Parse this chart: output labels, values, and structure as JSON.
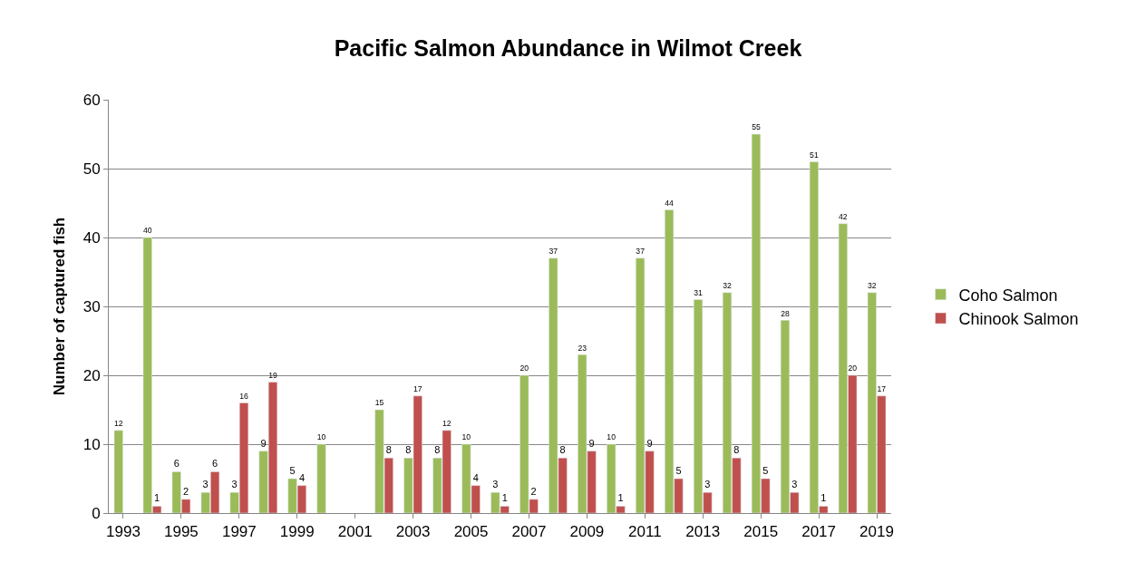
{
  "chart_data": {
    "type": "bar",
    "title": "Pacific Salmon Abundance in Wilmot Creek",
    "ylabel": "Number of captured fish",
    "categories": [
      "1993",
      null,
      "1995",
      null,
      "1997",
      null,
      "1999",
      null,
      "2001",
      null,
      "2003",
      null,
      "2005",
      null,
      "2007",
      null,
      "2009",
      null,
      "2011",
      null,
      "2013",
      null,
      "2015",
      null,
      "2017",
      null,
      "2019"
    ],
    "series": [
      {
        "name": "Coho Salmon",
        "color": "#9bbb59",
        "values": [
          12,
          40,
          6,
          3,
          3,
          9,
          5,
          10,
          null,
          15,
          8,
          8,
          10,
          3,
          20,
          37,
          23,
          10,
          37,
          44,
          31,
          32,
          55,
          28,
          51,
          42,
          32
        ]
      },
      {
        "name": "Chinook Salmon",
        "color": "#c0504d",
        "values": [
          null,
          1,
          2,
          6,
          16,
          19,
          4,
          null,
          null,
          8,
          17,
          12,
          4,
          1,
          2,
          8,
          9,
          1,
          9,
          5,
          3,
          8,
          5,
          3,
          1,
          20,
          17
        ]
      }
    ],
    "ylim": [
      0,
      60
    ],
    "yticks": [
      0,
      10,
      20,
      30,
      40,
      50,
      60
    ],
    "grid": "y",
    "legend": "right",
    "data_labels": true
  }
}
